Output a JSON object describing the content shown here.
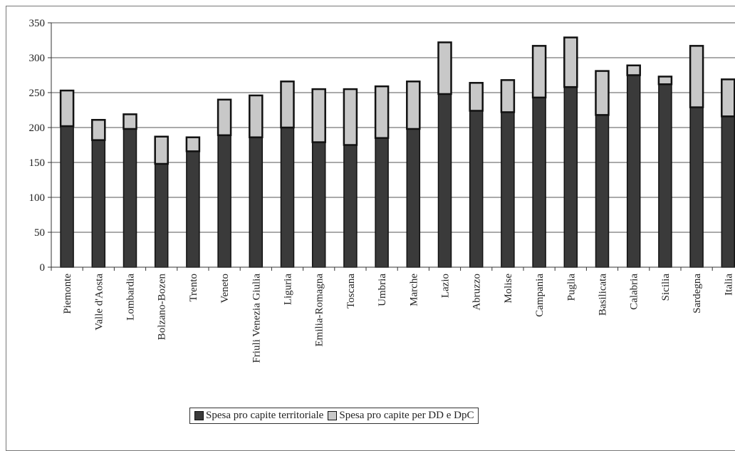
{
  "chart_data": {
    "type": "bar",
    "stacked": true,
    "categories": [
      "Piemonte",
      "Valle d'Aosta",
      "Lombardia",
      "Bolzano-Bozen",
      "Trento",
      "Veneto",
      "Friuli Venezia Giulia",
      "Liguria",
      "Emilia-Romagna",
      "Toscana",
      "Umbria",
      "Marche",
      "Lazio",
      "Abruzzo",
      "Molise",
      "Campania",
      "Puglia",
      "Basilicata",
      "Calabria",
      "Sicilia",
      "Sardegna",
      "Italia"
    ],
    "series": [
      {
        "name": "Spesa pro capite territoriale",
        "color": "#3a3a3a",
        "values": [
          202,
          182,
          198,
          148,
          166,
          189,
          186,
          200,
          179,
          175,
          185,
          198,
          248,
          224,
          222,
          243,
          258,
          218,
          275,
          262,
          229,
          216
        ]
      },
      {
        "name": "Spesa pro capite per DD e DpC",
        "color": "#c8c8c8",
        "values": [
          51,
          29,
          21,
          39,
          20,
          51,
          60,
          66,
          76,
          80,
          74,
          68,
          74,
          40,
          46,
          74,
          71,
          63,
          14,
          11,
          88,
          53
        ]
      }
    ],
    "yticks": [
      0,
      50,
      100,
      150,
      200,
      250,
      300,
      350
    ],
    "ylim": [
      0,
      350
    ],
    "grid": true,
    "legend_position": "bottom"
  }
}
